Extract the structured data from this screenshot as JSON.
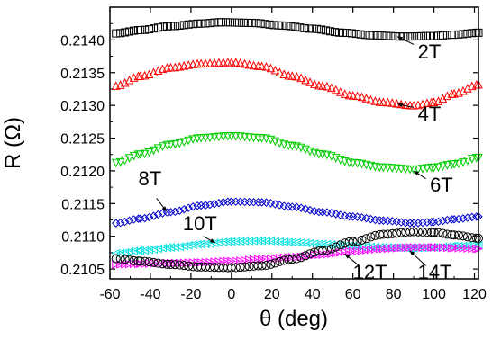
{
  "chart_data": {
    "type": "scatter",
    "xlabel": "θ (deg)",
    "ylabel": "R (Ω)",
    "xlim": [
      -60,
      122
    ],
    "ylim": [
      0.21035,
      0.2145
    ],
    "x_ticks": [
      "-60",
      "-40",
      "-20",
      "0",
      "20",
      "40",
      "60",
      "80",
      "100",
      "120"
    ],
    "y_ticks": [
      "0.2105",
      "0.2110",
      "0.2115",
      "0.2120",
      "0.2125",
      "0.2130",
      "0.2135",
      "0.2140"
    ],
    "legend": "none",
    "grid": false,
    "series": [
      {
        "name": "2T",
        "color": "#000000",
        "marker": "square",
        "points": [
          [
            -57,
            0.2141
          ],
          [
            -45,
            0.21415
          ],
          [
            -30,
            0.21421
          ],
          [
            -15,
            0.21425
          ],
          [
            -5,
            0.21427
          ],
          [
            10,
            0.21426
          ],
          [
            25,
            0.21422
          ],
          [
            40,
            0.21417
          ],
          [
            55,
            0.21411
          ],
          [
            70,
            0.21407
          ],
          [
            85,
            0.21405
          ],
          [
            100,
            0.21406
          ],
          [
            110,
            0.21408
          ],
          [
            122,
            0.21411
          ]
        ]
      },
      {
        "name": "4T",
        "color": "#ff0000",
        "marker": "triangle-up",
        "points": [
          [
            -57,
            0.2133
          ],
          [
            -45,
            0.21345
          ],
          [
            -30,
            0.21358
          ],
          [
            -15,
            0.21364
          ],
          [
            0,
            0.21366
          ],
          [
            15,
            0.2136
          ],
          [
            30,
            0.21345
          ],
          [
            45,
            0.2133
          ],
          [
            60,
            0.21315
          ],
          [
            75,
            0.21305
          ],
          [
            90,
            0.213
          ],
          [
            100,
            0.21305
          ],
          [
            110,
            0.21318
          ],
          [
            122,
            0.21332
          ]
        ]
      },
      {
        "name": "6T",
        "color": "#00cc00",
        "marker": "triangle-down",
        "points": [
          [
            -57,
            0.21212
          ],
          [
            -45,
            0.21225
          ],
          [
            -30,
            0.2124
          ],
          [
            -15,
            0.2125
          ],
          [
            0,
            0.21253
          ],
          [
            15,
            0.2125
          ],
          [
            30,
            0.21238
          ],
          [
            45,
            0.21225
          ],
          [
            60,
            0.21212
          ],
          [
            75,
            0.21205
          ],
          [
            90,
            0.21202
          ],
          [
            100,
            0.21205
          ],
          [
            110,
            0.2121
          ],
          [
            122,
            0.2122
          ]
        ]
      },
      {
        "name": "8T",
        "color": "#0000cc",
        "marker": "diamond",
        "points": [
          [
            -57,
            0.2112
          ],
          [
            -45,
            0.21127
          ],
          [
            -30,
            0.21137
          ],
          [
            -15,
            0.21147
          ],
          [
            0,
            0.21153
          ],
          [
            15,
            0.21152
          ],
          [
            30,
            0.21145
          ],
          [
            45,
            0.21137
          ],
          [
            60,
            0.2113
          ],
          [
            75,
            0.21124
          ],
          [
            90,
            0.2112
          ],
          [
            100,
            0.21122
          ],
          [
            110,
            0.21126
          ],
          [
            122,
            0.2113
          ]
        ]
      },
      {
        "name": "10T",
        "color": "#00e0e0",
        "marker": "triangle-left",
        "points": [
          [
            -57,
            0.21074
          ],
          [
            -45,
            0.21078
          ],
          [
            -30,
            0.21083
          ],
          [
            -15,
            0.21088
          ],
          [
            0,
            0.21092
          ],
          [
            15,
            0.21093
          ],
          [
            30,
            0.21091
          ],
          [
            45,
            0.21088
          ],
          [
            60,
            0.21085
          ],
          [
            75,
            0.21083
          ],
          [
            90,
            0.21082
          ],
          [
            100,
            0.21083
          ],
          [
            110,
            0.21085
          ],
          [
            122,
            0.21086
          ]
        ]
      },
      {
        "name": "12T",
        "color": "#ff00ff",
        "marker": "triangle-right",
        "points": [
          [
            -57,
            0.21057
          ],
          [
            -45,
            0.21058
          ],
          [
            -30,
            0.21059
          ],
          [
            -15,
            0.2106
          ],
          [
            0,
            0.21062
          ],
          [
            15,
            0.21065
          ],
          [
            30,
            0.21068
          ],
          [
            45,
            0.21072
          ],
          [
            60,
            0.21077
          ],
          [
            75,
            0.21081
          ],
          [
            90,
            0.21083
          ],
          [
            100,
            0.21083
          ],
          [
            110,
            0.21082
          ],
          [
            122,
            0.21081
          ]
        ]
      },
      {
        "name": "14T",
        "color": "#000000",
        "marker": "circle",
        "points": [
          [
            -57,
            0.21066
          ],
          [
            -45,
            0.21062
          ],
          [
            -30,
            0.21057
          ],
          [
            -15,
            0.21053
          ],
          [
            0,
            0.21052
          ],
          [
            15,
            0.21055
          ],
          [
            30,
            0.21065
          ],
          [
            45,
            0.21078
          ],
          [
            60,
            0.21092
          ],
          [
            75,
            0.21103
          ],
          [
            90,
            0.21107
          ],
          [
            100,
            0.21106
          ],
          [
            110,
            0.21102
          ],
          [
            122,
            0.21097
          ]
        ]
      }
    ],
    "annotations": [
      {
        "text": "2T",
        "series": "2T"
      },
      {
        "text": "4T",
        "series": "4T"
      },
      {
        "text": "6T",
        "series": "6T"
      },
      {
        "text": "8T",
        "series": "8T"
      },
      {
        "text": "10T",
        "series": "10T"
      },
      {
        "text": "12T",
        "series": "12T"
      },
      {
        "text": "14T",
        "series": "14T"
      }
    ]
  }
}
